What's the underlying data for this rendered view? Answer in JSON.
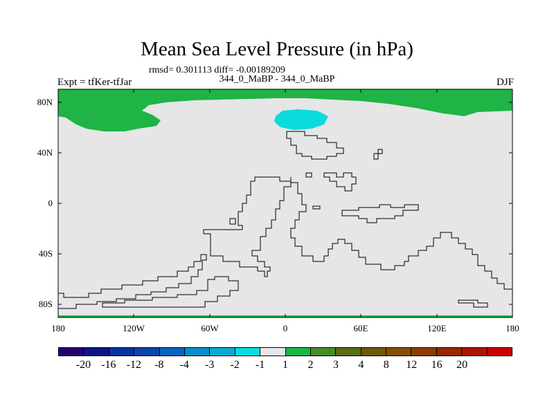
{
  "title": "Mean Sea Level Pressure (in hPa)",
  "stats": "rmsd= 0.301113 diff= -0.00189209",
  "left_string": "Expt = tfKer-tfJar",
  "center_string": "344_0_MaBP - 344_0_MaBP",
  "right_string": "DJF",
  "y_ticks": [
    "80N",
    "40N",
    "0",
    "40S",
    "80S"
  ],
  "x_ticks": [
    "180",
    "120W",
    "60W",
    "0",
    "60E",
    "120E",
    "180"
  ],
  "colorbar": {
    "colors": [
      "#28006e",
      "#0f1487",
      "#0a32a0",
      "#0a46aa",
      "#0a64be",
      "#0a8cc8",
      "#0aaad2",
      "#0adcdc",
      "#e6e6e6",
      "#1eb446",
      "#468c28",
      "#5a6e14",
      "#6e5a0a",
      "#825000",
      "#8c3c00",
      "#962800",
      "#aa1400",
      "#c80000"
    ],
    "labels": [
      "-20",
      "-16",
      "-12",
      "-8",
      "-4",
      "-3",
      "-2",
      "-1",
      "1",
      "2",
      "3",
      "4",
      "8",
      "12",
      "16",
      "20"
    ]
  },
  "map_colors": {
    "background": "#e6e6e6",
    "positive": "#1eb446",
    "negative": "#0adcdc",
    "coast": "#000000"
  }
}
